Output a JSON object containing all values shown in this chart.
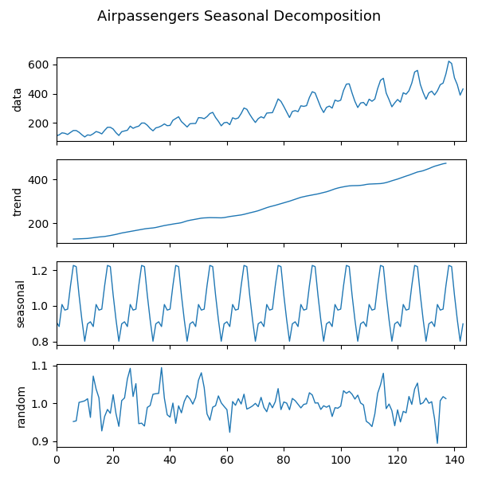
{
  "title": "Airpassengers Seasonal Decomposition",
  "line_color": "#1f77b4",
  "background_color": "#ffffff",
  "fig_size": [
    6.0,
    6.0
  ],
  "dpi": 100,
  "airpassengers": [
    112,
    118,
    132,
    129,
    121,
    135,
    148,
    148,
    136,
    119,
    104,
    118,
    115,
    126,
    141,
    135,
    125,
    149,
    170,
    170,
    158,
    133,
    114,
    140,
    145,
    150,
    178,
    163,
    172,
    178,
    199,
    199,
    184,
    162,
    146,
    166,
    171,
    180,
    193,
    181,
    183,
    218,
    230,
    242,
    209,
    191,
    172,
    194,
    196,
    196,
    236,
    235,
    229,
    243,
    264,
    272,
    237,
    211,
    180,
    201,
    204,
    188,
    235,
    227,
    234,
    264,
    302,
    293,
    259,
    229,
    203,
    229,
    242,
    233,
    267,
    269,
    270,
    315,
    364,
    347,
    312,
    274,
    237,
    278,
    284,
    277,
    317,
    313,
    318,
    374,
    413,
    405,
    355,
    306,
    271,
    306,
    315,
    301,
    356,
    348,
    355,
    422,
    465,
    467,
    404,
    347,
    305,
    336,
    340,
    318,
    362,
    348,
    363,
    435,
    491,
    505,
    404,
    359,
    310,
    337,
    360,
    342,
    406,
    396,
    420,
    472,
    548,
    559,
    463,
    407,
    362,
    405,
    417,
    391,
    419,
    461,
    472,
    535,
    622,
    606,
    508,
    461,
    390,
    432
  ]
}
